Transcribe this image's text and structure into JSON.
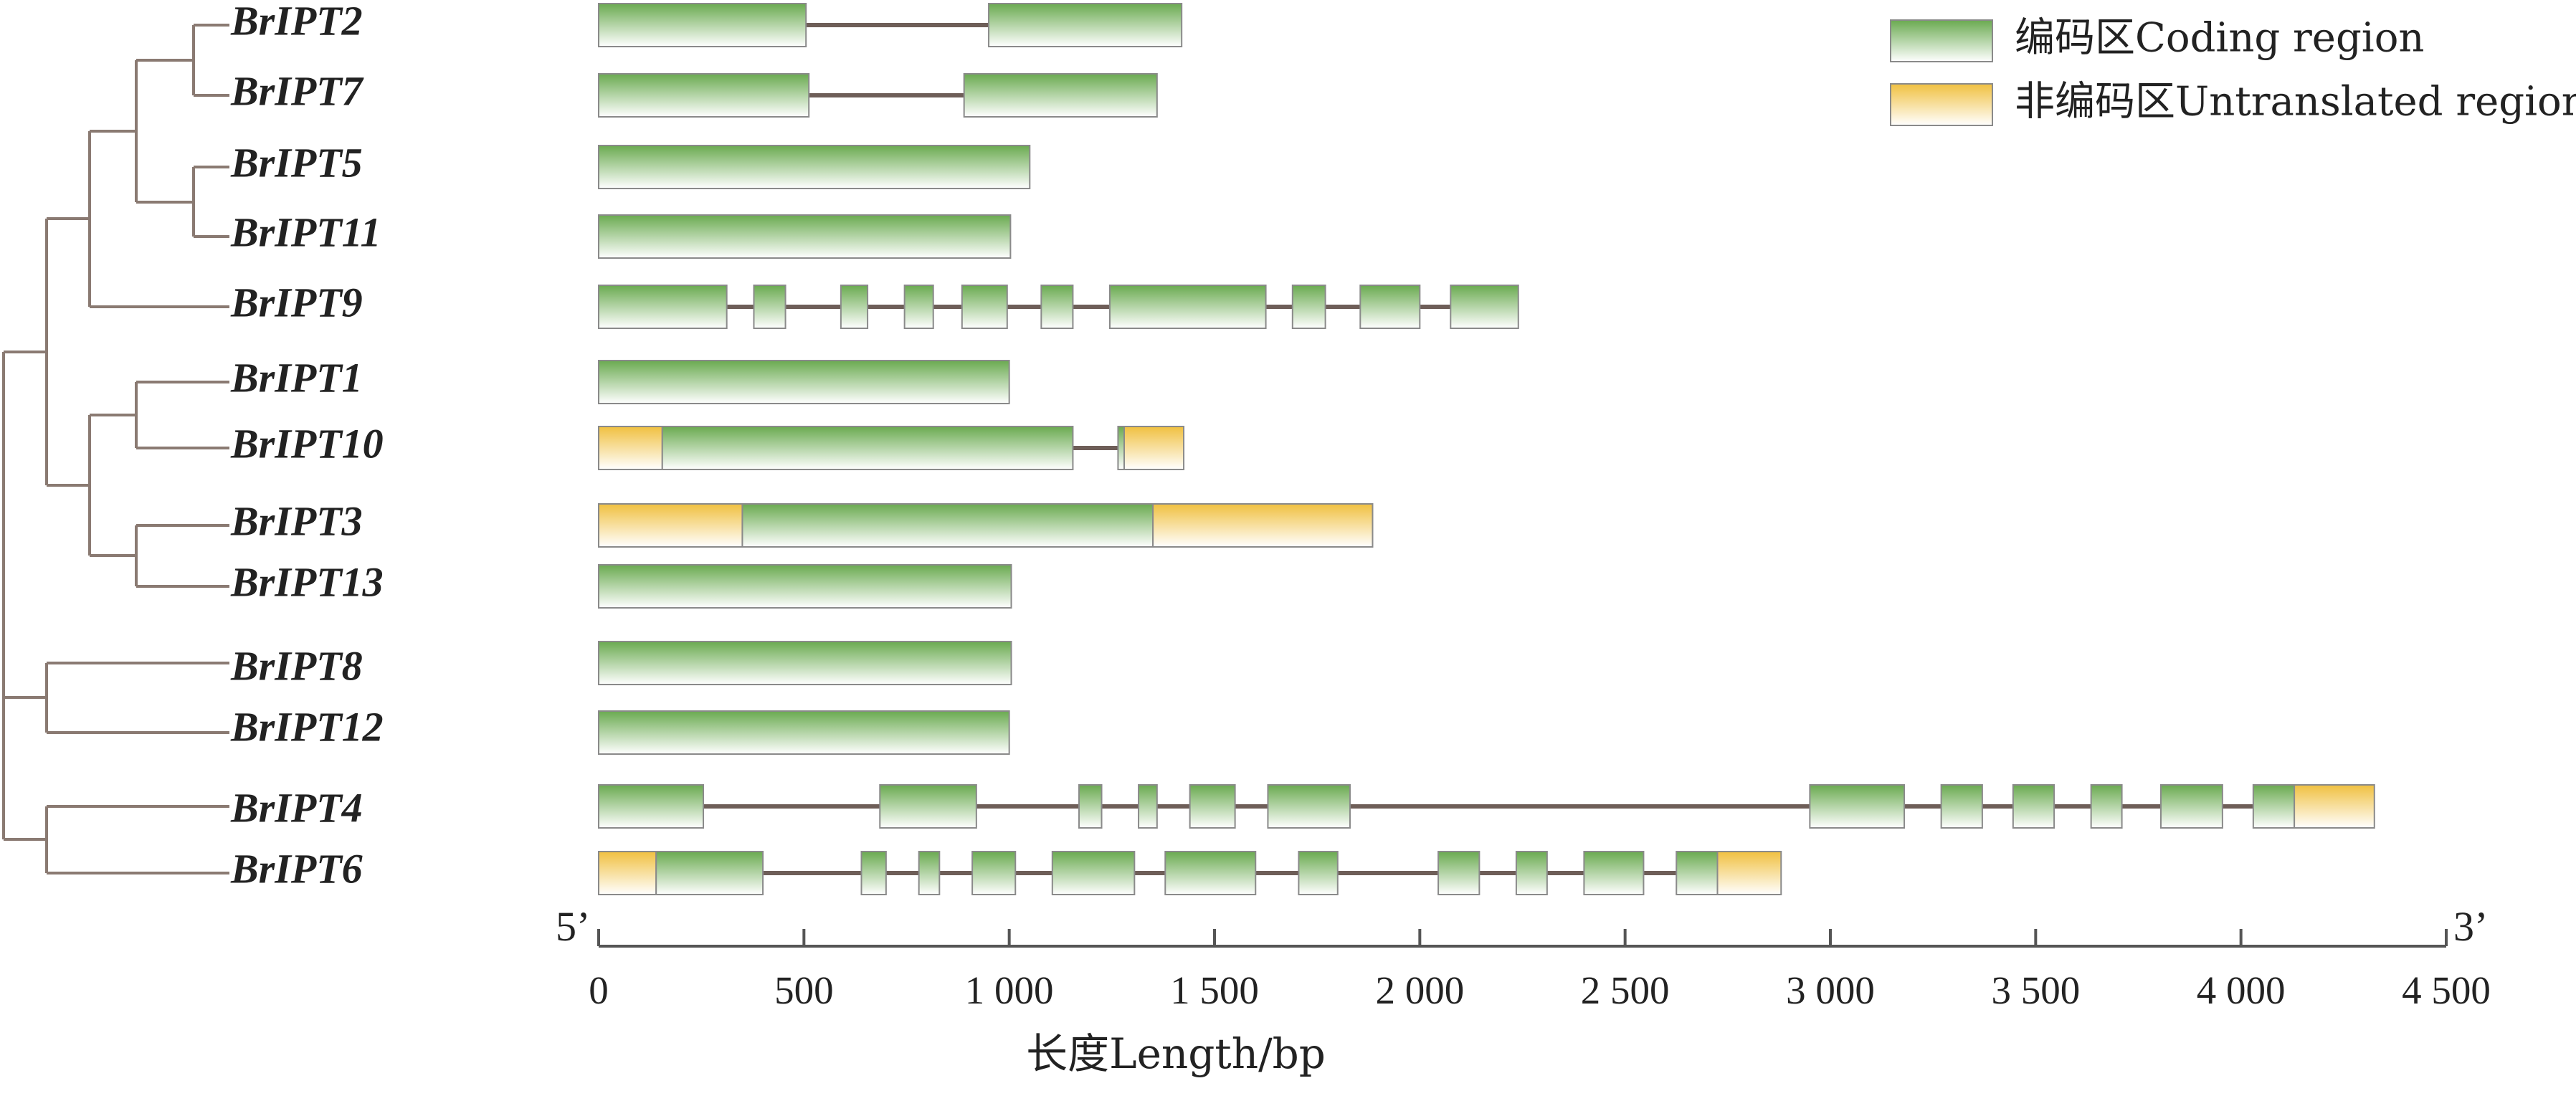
{
  "legend": {
    "coding_label": "编码区Coding region",
    "utr_label": "非编码区Untranslated region"
  },
  "axis": {
    "title": "长度Length/bp",
    "five_prime": "5’",
    "three_prime": "3’",
    "max": 4500,
    "ticks": [
      {
        "value": 0,
        "label": "0"
      },
      {
        "value": 500,
        "label": "500"
      },
      {
        "value": 1000,
        "label": "1 000"
      },
      {
        "value": 1500,
        "label": "1 500"
      },
      {
        "value": 2000,
        "label": "2 000"
      },
      {
        "value": 2500,
        "label": "2 500"
      },
      {
        "value": 3000,
        "label": "3 000"
      },
      {
        "value": 3500,
        "label": "3 500"
      },
      {
        "value": 4000,
        "label": "4 000"
      },
      {
        "value": 4500,
        "label": "4 500"
      }
    ]
  },
  "colors": {
    "coding": "#6aaa50",
    "utr": "#f0c040",
    "intron": "#6e5e58",
    "tree": "#8a7a72"
  },
  "tree_order": [
    "BrIPT2",
    "BrIPT7",
    "BrIPT5",
    "BrIPT11",
    "BrIPT9",
    "BrIPT1",
    "BrIPT10",
    "BrIPT3",
    "BrIPT13",
    "BrIPT8",
    "BrIPT12",
    "BrIPT4",
    "BrIPT6"
  ],
  "genes": [
    {
      "name": "BrIPT2",
      "length": 1420,
      "segments": [
        {
          "type": "cds",
          "start": 0,
          "end": 505
        },
        {
          "type": "cds",
          "start": 950,
          "end": 1420
        }
      ]
    },
    {
      "name": "BrIPT7",
      "length": 1360,
      "segments": [
        {
          "type": "cds",
          "start": 0,
          "end": 512
        },
        {
          "type": "cds",
          "start": 890,
          "end": 1360
        }
      ]
    },
    {
      "name": "BrIPT5",
      "length": 1050,
      "segments": [
        {
          "type": "cds",
          "start": 0,
          "end": 1050
        }
      ]
    },
    {
      "name": "BrIPT11",
      "length": 1003,
      "segments": [
        {
          "type": "cds",
          "start": 0,
          "end": 1003
        }
      ]
    },
    {
      "name": "BrIPT9",
      "length": 2240,
      "segments": [
        {
          "type": "cds",
          "start": 0,
          "end": 312
        },
        {
          "type": "cds",
          "start": 378,
          "end": 455
        },
        {
          "type": "cds",
          "start": 590,
          "end": 655
        },
        {
          "type": "cds",
          "start": 745,
          "end": 815
        },
        {
          "type": "cds",
          "start": 885,
          "end": 995
        },
        {
          "type": "cds",
          "start": 1078,
          "end": 1155
        },
        {
          "type": "cds",
          "start": 1245,
          "end": 1625
        },
        {
          "type": "cds",
          "start": 1690,
          "end": 1770
        },
        {
          "type": "cds",
          "start": 1855,
          "end": 2000
        },
        {
          "type": "cds",
          "start": 2075,
          "end": 2240
        }
      ]
    },
    {
      "name": "BrIPT1",
      "length": 1000,
      "segments": [
        {
          "type": "cds",
          "start": 0,
          "end": 1000
        }
      ]
    },
    {
      "name": "BrIPT10",
      "length": 1425,
      "segments": [
        {
          "type": "utr",
          "start": 0,
          "end": 155
        },
        {
          "type": "cds",
          "start": 155,
          "end": 1155
        },
        {
          "type": "cds",
          "start": 1265,
          "end": 1280
        },
        {
          "type": "utr",
          "start": 1280,
          "end": 1425
        }
      ]
    },
    {
      "name": "BrIPT3",
      "length": 1885,
      "segments": [
        {
          "type": "utr",
          "start": 0,
          "end": 350
        },
        {
          "type": "cds",
          "start": 350,
          "end": 1350
        },
        {
          "type": "utr",
          "start": 1350,
          "end": 1885
        }
      ]
    },
    {
      "name": "BrIPT13",
      "length": 1005,
      "segments": [
        {
          "type": "cds",
          "start": 0,
          "end": 1005
        }
      ]
    },
    {
      "name": "BrIPT8",
      "length": 1005,
      "segments": [
        {
          "type": "cds",
          "start": 0,
          "end": 1005
        }
      ]
    },
    {
      "name": "BrIPT12",
      "length": 1000,
      "segments": [
        {
          "type": "cds",
          "start": 0,
          "end": 1000
        }
      ]
    },
    {
      "name": "BrIPT4",
      "length": 4325,
      "segments": [
        {
          "type": "cds",
          "start": 0,
          "end": 255
        },
        {
          "type": "cds",
          "start": 685,
          "end": 920
        },
        {
          "type": "cds",
          "start": 1170,
          "end": 1225
        },
        {
          "type": "cds",
          "start": 1315,
          "end": 1360
        },
        {
          "type": "cds",
          "start": 1440,
          "end": 1550
        },
        {
          "type": "cds",
          "start": 1630,
          "end": 1830
        },
        {
          "type": "cds",
          "start": 2950,
          "end": 3180
        },
        {
          "type": "cds",
          "start": 3270,
          "end": 3370
        },
        {
          "type": "cds",
          "start": 3445,
          "end": 3545
        },
        {
          "type": "cds",
          "start": 3635,
          "end": 3710
        },
        {
          "type": "cds",
          "start": 3805,
          "end": 3955
        },
        {
          "type": "cds",
          "start": 4030,
          "end": 4130
        },
        {
          "type": "utr",
          "start": 4130,
          "end": 4325
        }
      ]
    },
    {
      "name": "BrIPT6",
      "length": 2880,
      "segments": [
        {
          "type": "utr",
          "start": 0,
          "end": 140
        },
        {
          "type": "cds",
          "start": 140,
          "end": 400
        },
        {
          "type": "cds",
          "start": 640,
          "end": 700
        },
        {
          "type": "cds",
          "start": 780,
          "end": 830
        },
        {
          "type": "cds",
          "start": 910,
          "end": 1015
        },
        {
          "type": "cds",
          "start": 1105,
          "end": 1305
        },
        {
          "type": "cds",
          "start": 1380,
          "end": 1600
        },
        {
          "type": "cds",
          "start": 1705,
          "end": 1800
        },
        {
          "type": "cds",
          "start": 2045,
          "end": 2145
        },
        {
          "type": "cds",
          "start": 2235,
          "end": 2310
        },
        {
          "type": "cds",
          "start": 2400,
          "end": 2545
        },
        {
          "type": "cds",
          "start": 2625,
          "end": 2725
        },
        {
          "type": "utr",
          "start": 2725,
          "end": 2880
        }
      ]
    }
  ]
}
